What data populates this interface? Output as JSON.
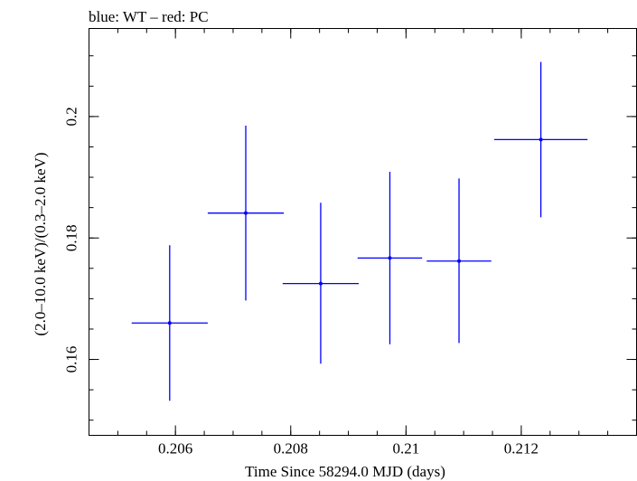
{
  "chart_data": {
    "type": "scatter",
    "title": "blue: WT – red: PC",
    "xlabel": "Time Since 58294.0 MJD (days)",
    "ylabel": "(2.0–10.0 keV)/(0.3–2.0 keV)",
    "xlim": [
      0.2045,
      0.214
    ],
    "ylim": [
      0.1475,
      0.2145
    ],
    "x_ticks": [
      {
        "value": 0.206,
        "label": "0.206"
      },
      {
        "value": 0.208,
        "label": "0.208"
      },
      {
        "value": 0.21,
        "label": "0.21"
      },
      {
        "value": 0.212,
        "label": "0.212"
      }
    ],
    "y_ticks": [
      {
        "value": 0.16,
        "label": "0.16"
      },
      {
        "value": 0.18,
        "label": "0.18"
      },
      {
        "value": 0.2,
        "label": "0.2"
      }
    ],
    "series": [
      {
        "name": "WT",
        "color": "#0000ff",
        "points": [
          {
            "x": 0.2059,
            "xerr": 0.00066,
            "y": 0.166,
            "yerr_lo": 0.0128,
            "yerr_hi": 0.0128
          },
          {
            "x": 0.20722,
            "xerr": 0.00066,
            "y": 0.1841,
            "yerr_lo": 0.0144,
            "yerr_hi": 0.0144
          },
          {
            "x": 0.20852,
            "xerr": 0.00066,
            "y": 0.1725,
            "yerr_lo": 0.0132,
            "yerr_hi": 0.0133
          },
          {
            "x": 0.20972,
            "xerr": 0.00056,
            "y": 0.1767,
            "yerr_lo": 0.0142,
            "yerr_hi": 0.0142
          },
          {
            "x": 0.21092,
            "xerr": 0.00056,
            "y": 0.1762,
            "yerr_lo": 0.0135,
            "yerr_hi": 0.0136
          },
          {
            "x": 0.21234,
            "xerr": 0.00081,
            "y": 0.1962,
            "yerr_lo": 0.0128,
            "yerr_hi": 0.0128
          }
        ]
      }
    ],
    "legend": "none",
    "grid": false
  }
}
